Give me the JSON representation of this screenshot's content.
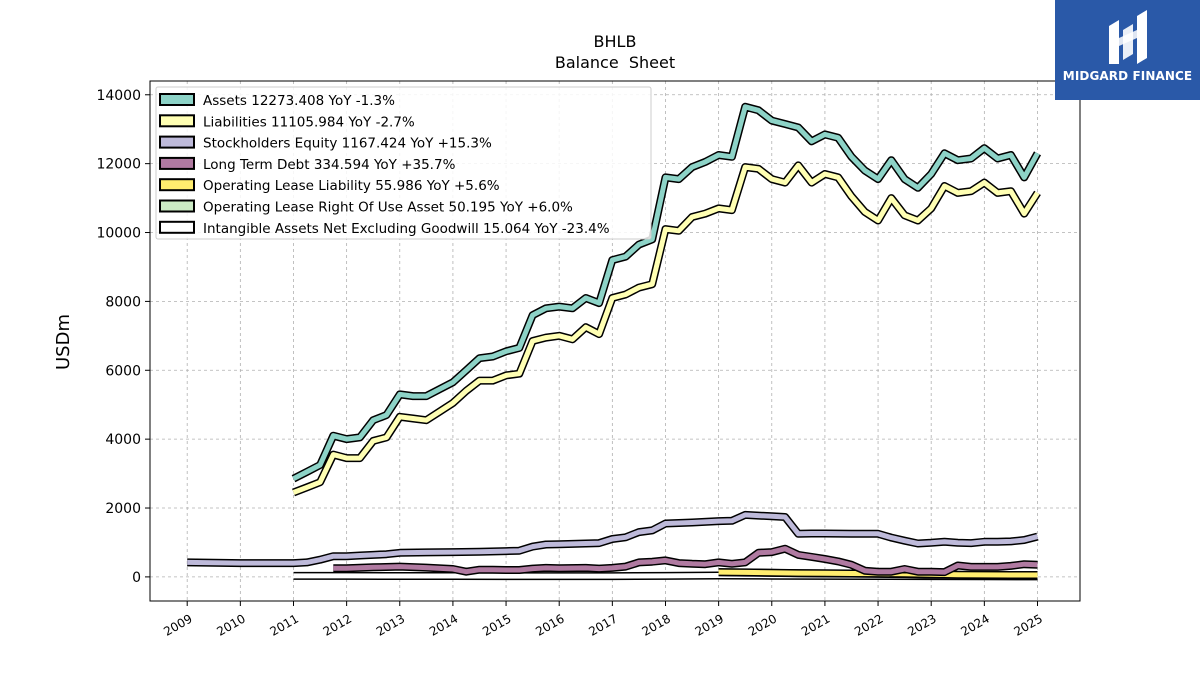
{
  "brand": {
    "name": "MIDGARD FINANCE",
    "bg_color": "#2a59a8"
  },
  "chart_data": {
    "type": "line",
    "title": "BHLB",
    "subtitle": "Balance  Sheet",
    "ylabel": "USDm",
    "xlabel": "",
    "xlim": [
      2008.3,
      2025.8
    ],
    "ylim": [
      -700,
      14400
    ],
    "yticks": [
      0,
      2000,
      4000,
      6000,
      8000,
      10000,
      12000,
      14000
    ],
    "xticks": [
      "2009",
      "2010",
      "2011",
      "2012",
      "2013",
      "2014",
      "2015",
      "2016",
      "2017",
      "2018",
      "2019",
      "2020",
      "2021",
      "2022",
      "2023",
      "2024",
      "2025"
    ],
    "grid": true,
    "legend_position": "top-left",
    "series": [
      {
        "name": "Assets  12273.408 YoY -1.3%",
        "color": "#8dd3c7",
        "x": [
          2011.0,
          2011.25,
          2011.5,
          2011.75,
          2012.0,
          2012.25,
          2012.5,
          2012.75,
          2013.0,
          2013.25,
          2013.5,
          2013.75,
          2014.0,
          2014.25,
          2014.5,
          2014.75,
          2015.0,
          2015.25,
          2015.5,
          2015.75,
          2016.0,
          2016.25,
          2016.5,
          2016.75,
          2017.0,
          2017.25,
          2017.5,
          2017.75,
          2018.0,
          2018.25,
          2018.5,
          2018.75,
          2019.0,
          2019.25,
          2019.5,
          2019.75,
          2020.0,
          2020.25,
          2020.5,
          2020.75,
          2021.0,
          2021.25,
          2021.5,
          2021.75,
          2022.0,
          2022.25,
          2022.5,
          2022.75,
          2023.0,
          2023.25,
          2023.5,
          2023.75,
          2024.0,
          2024.25,
          2024.5,
          2024.75,
          2025.0
        ],
        "y": [
          2850,
          3050,
          3250,
          4100,
          4000,
          4050,
          4550,
          4700,
          5300,
          5250,
          5250,
          5450,
          5650,
          6000,
          6350,
          6400,
          6550,
          6650,
          7600,
          7800,
          7850,
          7800,
          8100,
          7950,
          9200,
          9300,
          9650,
          9800,
          11600,
          11550,
          11900,
          12050,
          12250,
          12200,
          13650,
          13550,
          13250,
          13150,
          13050,
          12650,
          12850,
          12750,
          12200,
          11800,
          11550,
          12100,
          11550,
          11300,
          11700,
          12300,
          12100,
          12150,
          12450,
          12150,
          12250,
          11600,
          12300
        ]
      },
      {
        "name": "Liabilities  11105.984 YoY -2.7%",
        "color": "#ffffb3",
        "x": [
          2011.0,
          2011.25,
          2011.5,
          2011.75,
          2012.0,
          2012.25,
          2012.5,
          2012.75,
          2013.0,
          2013.25,
          2013.5,
          2013.75,
          2014.0,
          2014.25,
          2014.5,
          2014.75,
          2015.0,
          2015.25,
          2015.5,
          2015.75,
          2016.0,
          2016.25,
          2016.5,
          2016.75,
          2017.0,
          2017.25,
          2017.5,
          2017.75,
          2018.0,
          2018.25,
          2018.5,
          2018.75,
          2019.0,
          2019.25,
          2019.5,
          2019.75,
          2020.0,
          2020.25,
          2020.5,
          2020.75,
          2021.0,
          2021.25,
          2021.5,
          2021.75,
          2022.0,
          2022.25,
          2022.5,
          2022.75,
          2023.0,
          2023.25,
          2023.5,
          2023.75,
          2024.0,
          2024.25,
          2024.5,
          2024.75,
          2025.0
        ],
        "y": [
          2450,
          2600,
          2750,
          3550,
          3450,
          3450,
          3950,
          4050,
          4650,
          4600,
          4550,
          4800,
          5050,
          5400,
          5700,
          5700,
          5850,
          5900,
          6850,
          6950,
          7000,
          6900,
          7250,
          7050,
          8100,
          8200,
          8400,
          8500,
          10100,
          10050,
          10450,
          10550,
          10700,
          10650,
          11900,
          11850,
          11550,
          11450,
          11950,
          11450,
          11700,
          11600,
          11050,
          10600,
          10350,
          11000,
          10500,
          10350,
          10700,
          11350,
          11150,
          11200,
          11450,
          11150,
          11200,
          10550,
          11150
        ]
      },
      {
        "name": "Stockholders Equity  1167.424 YoY +15.3%",
        "color": "#bebada",
        "x": [
          2009.0,
          2009.5,
          2010.0,
          2010.5,
          2011.0,
          2011.25,
          2011.5,
          2011.75,
          2012.0,
          2012.25,
          2012.5,
          2012.75,
          2013.0,
          2013.5,
          2014.0,
          2014.5,
          2015.0,
          2015.25,
          2015.5,
          2015.75,
          2016.0,
          2016.5,
          2016.75,
          2017.0,
          2017.25,
          2017.5,
          2017.75,
          2018.0,
          2018.5,
          2019.0,
          2019.25,
          2019.5,
          2019.75,
          2020.0,
          2020.25,
          2020.5,
          2020.75,
          2021.0,
          2021.5,
          2022.0,
          2022.25,
          2022.5,
          2022.75,
          2023.0,
          2023.25,
          2023.5,
          2023.75,
          2024.0,
          2024.25,
          2024.5,
          2024.75,
          2025.0
        ],
        "y": [
          420,
          410,
          400,
          400,
          400,
          420,
          500,
          600,
          600,
          620,
          640,
          660,
          700,
          710,
          720,
          730,
          750,
          760,
          880,
          940,
          950,
          970,
          980,
          1100,
          1150,
          1300,
          1350,
          1550,
          1580,
          1620,
          1630,
          1800,
          1780,
          1760,
          1740,
          1250,
          1260,
          1260,
          1250,
          1250,
          1140,
          1050,
          970,
          990,
          1020,
          990,
          980,
          1020,
          1020,
          1030,
          1070,
          1170
        ]
      },
      {
        "name": "Long Term Debt  334.594 YoY +35.7%",
        "color": "#b07aa1",
        "x": [
          2011.75,
          2012.0,
          2012.5,
          2013.0,
          2013.5,
          2014.0,
          2014.25,
          2014.5,
          2014.75,
          2015.0,
          2015.25,
          2015.5,
          2015.75,
          2016.0,
          2016.5,
          2016.75,
          2017.0,
          2017.25,
          2017.5,
          2017.75,
          2018.0,
          2018.25,
          2018.5,
          2018.75,
          2019.0,
          2019.25,
          2019.5,
          2019.75,
          2020.0,
          2020.25,
          2020.5,
          2020.75,
          2021.0,
          2021.25,
          2021.5,
          2021.75,
          2022.0,
          2022.25,
          2022.5,
          2022.75,
          2023.0,
          2023.25,
          2023.5,
          2023.75,
          2024.0,
          2024.25,
          2024.5,
          2024.75,
          2025.0
        ],
        "y": [
          250,
          250,
          280,
          300,
          270,
          230,
          150,
          210,
          210,
          200,
          200,
          240,
          260,
          250,
          260,
          240,
          260,
          300,
          420,
          440,
          480,
          400,
          380,
          370,
          420,
          380,
          420,
          700,
          720,
          820,
          640,
          580,
          520,
          450,
          350,
          180,
          150,
          150,
          230,
          150,
          150,
          140,
          330,
          290,
          290,
          290,
          320,
          370,
          350
        ]
      },
      {
        "name": "Operating Lease Liability  55.986 YoY +5.6%",
        "color": "#ffed6f",
        "x": [
          2019.0,
          2019.5,
          2020.0,
          2020.5,
          2021.0,
          2021.5,
          2022.0,
          2022.5,
          2023.0,
          2023.5,
          2024.0,
          2024.5,
          2025.0
        ],
        "y": [
          140,
          130,
          120,
          110,
          105,
          100,
          95,
          90,
          75,
          65,
          58,
          55,
          56
        ]
      },
      {
        "name": "Operating Lease Right Of Use Asset  50.195 YoY +6.0%",
        "color": "#ccebc5",
        "x": [
          2019.0,
          2019.5,
          2020.0,
          2020.5,
          2021.0,
          2021.5,
          2022.0,
          2022.5,
          2023.0,
          2023.5,
          2024.0,
          2024.5,
          2025.0
        ],
        "y": [
          135,
          125,
          115,
          105,
          100,
          95,
          88,
          80,
          68,
          58,
          50,
          48,
          50
        ]
      },
      {
        "name": "Intangible Assets Net Excluding Goodwill  15.064 YoY -23.4%",
        "color": "#ffffff",
        "x": [
          2011.0,
          2012.0,
          2013.0,
          2014.0,
          2015.0,
          2016.0,
          2017.0,
          2018.0,
          2019.0,
          2020.0,
          2021.0,
          2022.0,
          2023.0,
          2024.0,
          2025.0
        ],
        "y": [
          30,
          28,
          27,
          26,
          24,
          23,
          22,
          30,
          40,
          36,
          30,
          26,
          22,
          18,
          15
        ]
      }
    ]
  }
}
